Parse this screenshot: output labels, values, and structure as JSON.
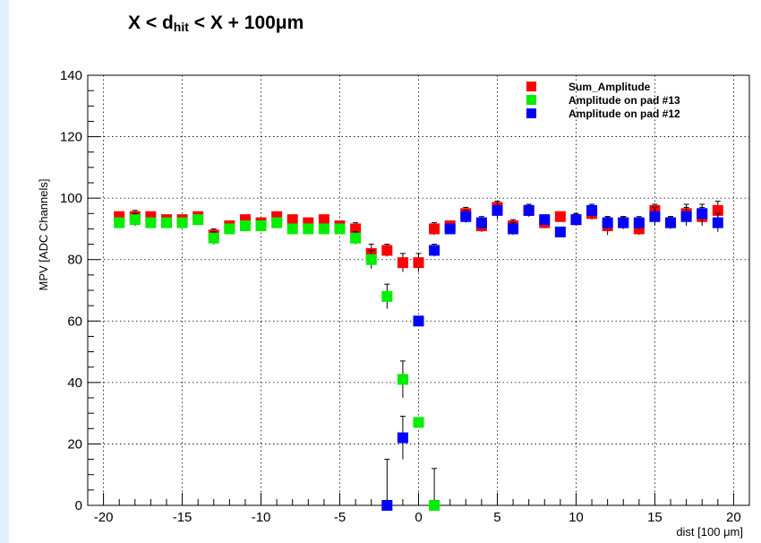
{
  "title": {
    "main": "X < d",
    "sub": "hit",
    "tail": " < X + 100μm"
  },
  "chart_data": {
    "type": "scatter",
    "title": "X < dhit < X + 100μm",
    "xlabel": "dist [100 μm]",
    "ylabel": "MPV [ADC Channels]",
    "xlim": [
      -21,
      21
    ],
    "ylim": [
      0,
      140
    ],
    "xticks": [
      -20,
      -15,
      -10,
      -5,
      0,
      5,
      10,
      15,
      20
    ],
    "yticks": [
      0,
      20,
      40,
      60,
      80,
      100,
      120,
      140
    ],
    "grid": true,
    "legend_position": "top-right",
    "series": [
      {
        "name": "Sum_Amplitude",
        "color": "#ff0000",
        "x": [
          -19,
          -18,
          -17,
          -16,
          -15,
          -14,
          -13,
          -12,
          -11,
          -10,
          -9,
          -8,
          -7,
          -6,
          -5,
          -4,
          -3,
          -2,
          -1,
          0,
          1,
          2,
          3,
          4,
          5,
          6,
          7,
          8,
          9,
          10,
          11,
          12,
          13,
          14,
          15,
          16,
          17,
          18,
          19
        ],
        "y": [
          94,
          94,
          94,
          93,
          93,
          94,
          88,
          91,
          93,
          92,
          94,
          93,
          92,
          93,
          91,
          90,
          82,
          83,
          79,
          79,
          90,
          91,
          95,
          91,
          97,
          91,
          96,
          92,
          94,
          93,
          95,
          91,
          92,
          90,
          96,
          92,
          95,
          94,
          96
        ],
        "err": [
          1,
          2,
          1,
          1,
          1,
          1,
          2,
          1,
          1,
          1,
          1,
          1,
          1,
          1,
          1,
          2,
          3,
          2,
          3,
          3,
          2,
          1,
          2,
          2,
          2,
          2,
          2,
          1,
          1,
          2,
          2,
          3,
          2,
          2,
          2,
          2,
          3,
          3,
          3
        ]
      },
      {
        "name": "Amplitude on pad #13",
        "color": "#00ee00",
        "x": [
          -19,
          -18,
          -17,
          -16,
          -15,
          -14,
          -13,
          -12,
          -11,
          -10,
          -9,
          -8,
          -7,
          -6,
          -5,
          -4,
          -3,
          -2,
          -1,
          0,
          1
        ],
        "y": [
          92,
          93,
          92,
          92,
          92,
          93,
          87,
          90,
          91,
          91,
          92,
          90,
          90,
          90,
          90,
          87,
          80,
          68,
          41,
          27,
          0
        ],
        "err": [
          1,
          2,
          1,
          1,
          1,
          1,
          2,
          1,
          1,
          1,
          1,
          1,
          1,
          1,
          1,
          2,
          3,
          4,
          6,
          0,
          12
        ]
      },
      {
        "name": "Amplitude on pad #12",
        "color": "#0000ff",
        "x": [
          -2,
          -1,
          0,
          1,
          2,
          3,
          4,
          5,
          6,
          7,
          8,
          9,
          10,
          11,
          12,
          13,
          14,
          15,
          16,
          17,
          18,
          19
        ],
        "y": [
          0,
          22,
          60,
          83,
          90,
          94,
          92,
          96,
          90,
          96,
          93,
          89,
          93,
          96,
          92,
          92,
          92,
          94,
          92,
          94,
          95,
          92
        ],
        "err": [
          15,
          7,
          0,
          2,
          1,
          2,
          2,
          3,
          2,
          2,
          1,
          1,
          2,
          2,
          2,
          2,
          2,
          3,
          2,
          3,
          3,
          3
        ]
      }
    ]
  }
}
